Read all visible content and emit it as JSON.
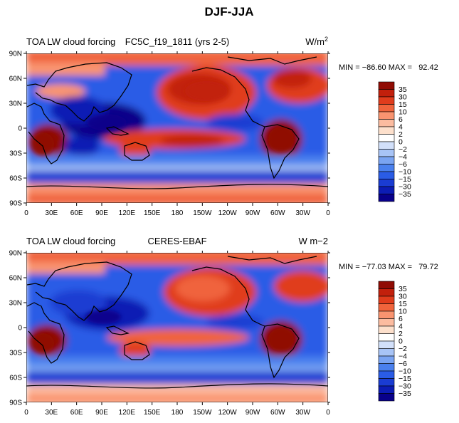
{
  "title": "DJF-JJA",
  "palette": [
    "#08008a",
    "#0c1cb4",
    "#1a3cd2",
    "#2a5ce6",
    "#4a80ee",
    "#7aa4f2",
    "#a8c4f6",
    "#d2e0fa",
    "#ffffff",
    "#fde0cc",
    "#fcbca0",
    "#f99470",
    "#f0643c",
    "#e03c1c",
    "#c2200c",
    "#900c04"
  ],
  "chart_data": [
    {
      "type": "heatmap",
      "title_left": "TOA LW cloud forcing",
      "title_center": "FC5C_f19_1811 (yrs 2-5)",
      "units": "W/m",
      "units_sup": "2",
      "stats": "MIN = −86.60 MAX =   92.42",
      "min": -86.6,
      "max": 92.42,
      "xlim": [
        0,
        360
      ],
      "ylim": [
        -90,
        90
      ],
      "x_ticks": [
        "0",
        "30E",
        "60E",
        "90E",
        "120E",
        "150E",
        "180",
        "150W",
        "120W",
        "90W",
        "60W",
        "30W",
        "0"
      ],
      "y_ticks": [
        "90N",
        "60N",
        "30N",
        "0",
        "30S",
        "60S",
        "90S"
      ],
      "colorbar_levels": [
        "35",
        "30",
        "15",
        "10",
        "6",
        "4",
        "2",
        "0",
        "−2",
        "−4",
        "−6",
        "−10",
        "−15",
        "−30",
        "−35"
      ]
    },
    {
      "type": "heatmap",
      "title_left": "TOA LW cloud forcing",
      "title_center": "CERES-EBAF",
      "units": "W m−2",
      "units_sup": "",
      "stats": "MIN = −77.03 MAX =   79.72",
      "min": -77.03,
      "max": 79.72,
      "xlim": [
        0,
        360
      ],
      "ylim": [
        -90,
        90
      ],
      "x_ticks": [
        "0",
        "30E",
        "60E",
        "90E",
        "120E",
        "150E",
        "180",
        "150W",
        "120W",
        "90W",
        "60W",
        "30W",
        "0"
      ],
      "y_ticks": [
        "90N",
        "60N",
        "30N",
        "0",
        "30S",
        "60S",
        "90S"
      ],
      "colorbar_levels": [
        "35",
        "30",
        "15",
        "10",
        "6",
        "4",
        "2",
        "0",
        "−2",
        "−4",
        "−6",
        "−10",
        "−15",
        "−30",
        "−35"
      ]
    }
  ]
}
